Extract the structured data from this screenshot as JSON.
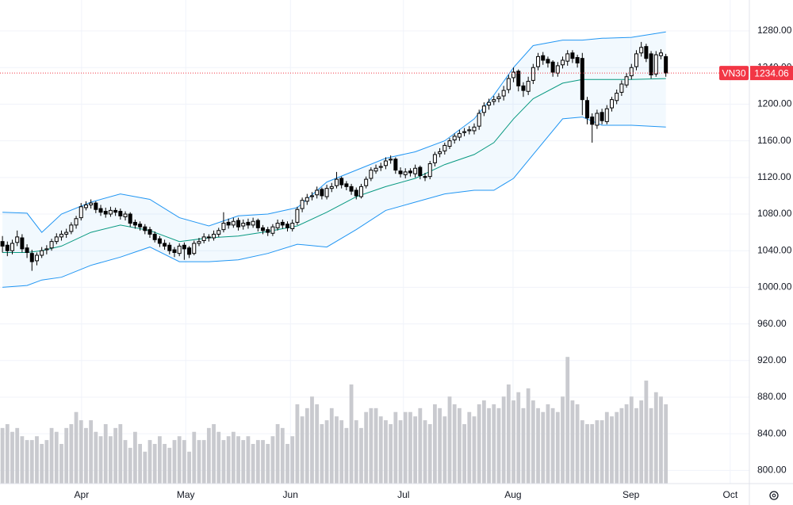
{
  "chart_data": {
    "type": "candlestick",
    "symbol": "VN30",
    "open": [
      1050,
      1046,
      1040,
      1049,
      1054,
      1043,
      1037,
      1029,
      1035,
      1041,
      1043,
      1050,
      1055,
      1058,
      1061,
      1068,
      1076,
      1087,
      1090,
      1092,
      1086,
      1083,
      1080,
      1084,
      1083,
      1077,
      1080,
      1071,
      1069,
      1066,
      1063,
      1058,
      1053,
      1048,
      1046,
      1041,
      1037,
      1046,
      1043,
      1037,
      1048,
      1051,
      1055,
      1054,
      1058,
      1063,
      1071,
      1068,
      1073,
      1067,
      1071,
      1068,
      1073,
      1065,
      1063,
      1059,
      1065,
      1071,
      1069,
      1064,
      1071,
      1086,
      1094,
      1099,
      1101,
      1107,
      1099,
      1108,
      1111,
      1119,
      1113,
      1110,
      1106,
      1099,
      1111,
      1119,
      1127,
      1131,
      1133,
      1139,
      1140,
      1127,
      1123,
      1127,
      1124,
      1131,
      1121,
      1121,
      1136,
      1146,
      1149,
      1154,
      1161,
      1164,
      1169,
      1171,
      1171,
      1176,
      1191,
      1199,
      1203,
      1206,
      1209,
      1216,
      1229,
      1236,
      1220,
      1214,
      1226,
      1241,
      1253,
      1249,
      1246,
      1234,
      1243,
      1247,
      1256,
      1251,
      1250,
      1204,
      1186,
      1177,
      1191,
      1181,
      1196,
      1204,
      1213,
      1221,
      1231,
      1241,
      1256,
      1263,
      1255,
      1233,
      1253,
      1252
    ],
    "high": [
      1056,
      1050,
      1052,
      1062,
      1058,
      1047,
      1041,
      1038,
      1044,
      1046,
      1053,
      1059,
      1062,
      1064,
      1071,
      1078,
      1092,
      1094,
      1096,
      1094,
      1090,
      1087,
      1088,
      1087,
      1086,
      1083,
      1082,
      1074,
      1072,
      1069,
      1066,
      1061,
      1056,
      1052,
      1049,
      1044,
      1048,
      1049,
      1045,
      1051,
      1054,
      1059,
      1058,
      1062,
      1065,
      1082,
      1075,
      1076,
      1076,
      1074,
      1075,
      1076,
      1075,
      1068,
      1066,
      1069,
      1074,
      1074,
      1072,
      1074,
      1088,
      1098,
      1102,
      1104,
      1110,
      1109,
      1112,
      1114,
      1126,
      1121,
      1116,
      1113,
      1109,
      1113,
      1121,
      1131,
      1134,
      1136,
      1142,
      1144,
      1142,
      1131,
      1130,
      1130,
      1134,
      1133,
      1125,
      1138,
      1148,
      1152,
      1158,
      1163,
      1168,
      1172,
      1174,
      1176,
      1179,
      1194,
      1202,
      1206,
      1209,
      1212,
      1220,
      1232,
      1240,
      1238,
      1224,
      1230,
      1244,
      1256,
      1257,
      1252,
      1248,
      1246,
      1252,
      1259,
      1259,
      1254,
      1256,
      1208,
      1190,
      1194,
      1195,
      1199,
      1208,
      1216,
      1226,
      1234,
      1244,
      1259,
      1268,
      1266,
      1258,
      1258,
      1260,
      1255
    ],
    "low": [
      1038,
      1034,
      1036,
      1045,
      1038,
      1032,
      1018,
      1024,
      1032,
      1036,
      1040,
      1047,
      1051,
      1054,
      1058,
      1064,
      1073,
      1084,
      1086,
      1081,
      1078,
      1076,
      1077,
      1078,
      1074,
      1073,
      1066,
      1064,
      1062,
      1058,
      1054,
      1049,
      1044,
      1041,
      1036,
      1033,
      1034,
      1030,
      1032,
      1035,
      1045,
      1048,
      1050,
      1051,
      1055,
      1060,
      1064,
      1065,
      1062,
      1063,
      1064,
      1065,
      1061,
      1058,
      1056,
      1056,
      1062,
      1064,
      1061,
      1061,
      1068,
      1082,
      1090,
      1095,
      1097,
      1096,
      1096,
      1104,
      1108,
      1108,
      1106,
      1101,
      1096,
      1097,
      1108,
      1116,
      1124,
      1127,
      1129,
      1135,
      1124,
      1120,
      1119,
      1121,
      1120,
      1118,
      1116,
      1118,
      1132,
      1142,
      1145,
      1151,
      1157,
      1160,
      1165,
      1167,
      1167,
      1172,
      1187,
      1194,
      1199,
      1202,
      1204,
      1212,
      1224,
      1214,
      1208,
      1210,
      1222,
      1237,
      1243,
      1240,
      1230,
      1230,
      1239,
      1242,
      1245,
      1240,
      1188,
      1178,
      1158,
      1173,
      1178,
      1178,
      1192,
      1200,
      1209,
      1218,
      1227,
      1237,
      1252,
      1246,
      1228,
      1230,
      1249,
      1230
    ],
    "close": [
      1045,
      1040,
      1048,
      1055,
      1042,
      1038,
      1028,
      1035,
      1040,
      1042,
      1050,
      1055,
      1058,
      1060,
      1068,
      1075,
      1088,
      1090,
      1092,
      1085,
      1082,
      1080,
      1084,
      1082,
      1078,
      1080,
      1070,
      1068,
      1066,
      1062,
      1058,
      1052,
      1048,
      1045,
      1040,
      1038,
      1045,
      1042,
      1036,
      1048,
      1050,
      1055,
      1054,
      1058,
      1062,
      1070,
      1068,
      1072,
      1066,
      1070,
      1068,
      1072,
      1065,
      1062,
      1060,
      1066,
      1070,
      1068,
      1065,
      1070,
      1085,
      1095,
      1098,
      1100,
      1106,
      1100,
      1108,
      1110,
      1118,
      1112,
      1110,
      1105,
      1100,
      1110,
      1118,
      1128,
      1130,
      1132,
      1138,
      1140,
      1128,
      1124,
      1126,
      1125,
      1130,
      1122,
      1120,
      1135,
      1145,
      1148,
      1155,
      1160,
      1165,
      1168,
      1170,
      1172,
      1175,
      1190,
      1198,
      1202,
      1205,
      1208,
      1215,
      1228,
      1235,
      1220,
      1215,
      1225,
      1240,
      1252,
      1248,
      1245,
      1235,
      1242,
      1248,
      1255,
      1250,
      1245,
      1205,
      1185,
      1178,
      1190,
      1182,
      1195,
      1205,
      1212,
      1222,
      1230,
      1240,
      1255,
      1262,
      1250,
      1232,
      1254,
      1256,
      1234.06
    ],
    "volume": [
      115,
      123,
      107,
      115,
      98,
      90,
      90,
      98,
      82,
      90,
      115,
      107,
      82,
      115,
      123,
      148,
      131,
      115,
      131,
      107,
      98,
      123,
      98,
      115,
      123,
      90,
      74,
      107,
      82,
      66,
      90,
      82,
      98,
      82,
      74,
      90,
      98,
      90,
      66,
      107,
      90,
      90,
      115,
      123,
      107,
      90,
      98,
      107,
      98,
      90,
      98,
      82,
      90,
      90,
      82,
      98,
      123,
      115,
      82,
      98,
      164,
      139,
      156,
      180,
      164,
      123,
      131,
      156,
      139,
      131,
      115,
      205,
      131,
      115,
      148,
      156,
      156,
      139,
      131,
      123,
      148,
      131,
      148,
      148,
      139,
      156,
      131,
      123,
      164,
      156,
      139,
      180,
      164,
      156,
      123,
      148,
      139,
      164,
      172,
      156,
      164,
      156,
      180,
      205,
      172,
      189,
      156,
      197,
      172,
      156,
      148,
      164,
      156,
      148,
      180,
      262,
      172,
      164,
      131,
      123,
      123,
      131,
      131,
      148,
      139,
      148,
      156,
      164,
      180,
      156,
      172,
      213,
      156,
      189,
      180,
      164
    ],
    "bands": {
      "x": [
        0,
        5,
        8,
        12,
        18,
        24,
        30,
        36,
        42,
        48,
        54,
        60,
        66,
        72,
        78,
        84,
        90,
        96,
        100,
        104,
        108,
        114,
        118,
        122,
        128,
        135
      ],
      "upper": [
        1082,
        1081,
        1060,
        1080,
        1093,
        1102,
        1096,
        1076,
        1067,
        1078,
        1080,
        1087,
        1115,
        1128,
        1141,
        1148,
        1160,
        1184,
        1210,
        1240,
        1264,
        1270,
        1270,
        1272,
        1273,
        1279
      ],
      "middle": [
        1038,
        1038,
        1040,
        1045,
        1060,
        1068,
        1062,
        1050,
        1054,
        1056,
        1061,
        1067,
        1082,
        1099,
        1110,
        1119,
        1134,
        1145,
        1158,
        1184,
        1206,
        1223,
        1227,
        1227,
        1227,
        1228
      ],
      "lower": [
        1000,
        1002,
        1008,
        1011,
        1024,
        1033,
        1044,
        1028,
        1028,
        1030,
        1037,
        1047,
        1044,
        1063,
        1084,
        1093,
        1102,
        1106,
        1106,
        1119,
        1145,
        1184,
        1186,
        1177,
        1177,
        1175
      ]
    },
    "colors": {
      "up": "#ffffff",
      "down": "#000000",
      "outline": "#000000",
      "band": "#2196f3",
      "middle": "#089981",
      "volume": "#c9cacf",
      "last": "#f23645"
    },
    "xlim": [
      -0.5,
      152
    ],
    "ylim": [
      785.6,
      1313.8
    ],
    "y2lim": [
      0,
      1000
    ],
    "xticks": [
      {
        "value": 16.1,
        "label": "Apr"
      },
      {
        "value": 37.3,
        "label": "May"
      },
      {
        "value": 58.6,
        "label": "Jun"
      },
      {
        "value": 81.6,
        "label": "Jul"
      },
      {
        "value": 103.9,
        "label": "Aug"
      },
      {
        "value": 127.9,
        "label": "Sep"
      },
      {
        "value": 148.1,
        "label": "Oct"
      }
    ],
    "yticks": [
      {
        "value": 800,
        "label": "800.00"
      },
      {
        "value": 840,
        "label": "840.00"
      },
      {
        "value": 880,
        "label": "880.00"
      },
      {
        "value": 920,
        "label": "920.00"
      },
      {
        "value": 960,
        "label": "960.00"
      },
      {
        "value": 1000,
        "label": "1000.00"
      },
      {
        "value": 1040,
        "label": "1040.00"
      },
      {
        "value": 1080,
        "label": "1080.00"
      },
      {
        "value": 1120,
        "label": "1120.00"
      },
      {
        "value": 1160,
        "label": "1160.00"
      },
      {
        "value": 1200,
        "label": "1200.00"
      },
      {
        "value": 1240,
        "label": "1240.00"
      },
      {
        "value": 1280,
        "label": "1280.00"
      }
    ],
    "grid": true
  }
}
